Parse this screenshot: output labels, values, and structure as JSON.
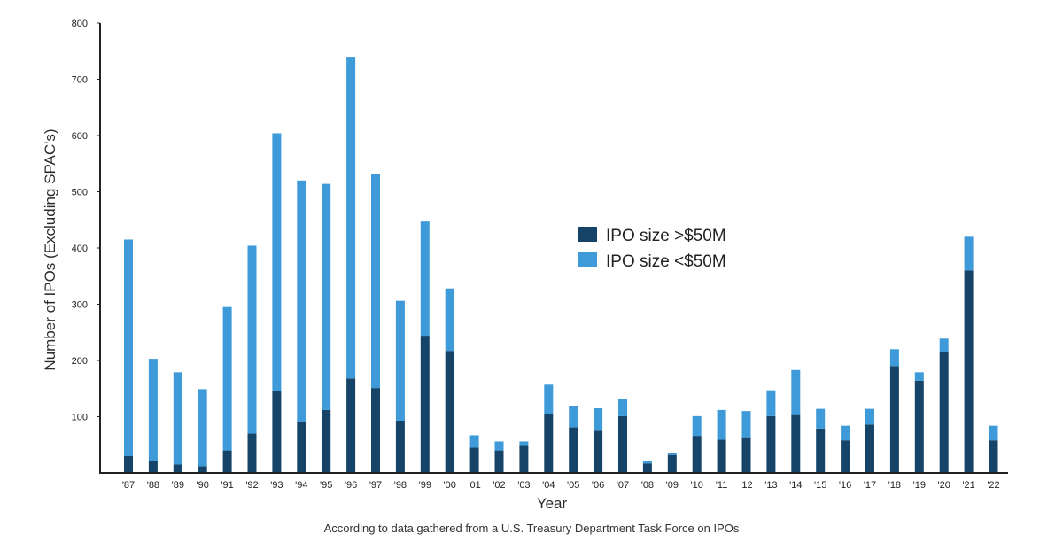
{
  "chart_data": {
    "type": "bar",
    "stacked": true,
    "xlabel": "Year",
    "ylabel": "Number of IPOs (Excluding SPAC's)",
    "caption": "According to data gathered from a U.S. Treasury Department Task Force on IPOs",
    "ylim": [
      0,
      800
    ],
    "yticks": [
      100,
      200,
      300,
      400,
      500,
      600,
      700,
      800
    ],
    "legend_position": "center-right",
    "categories": [
      "'87",
      "'88",
      "'89",
      "'90",
      "'91",
      "'92",
      "'93",
      "'94",
      "'95",
      "'96",
      "'97",
      "'98",
      "'99",
      "'00",
      "'01",
      "'02",
      "'03",
      "'04",
      "'05",
      "'06",
      "'07",
      "'08",
      "'09",
      "'10",
      "'11",
      "'12",
      "'13",
      "'14",
      "'15",
      "'16",
      "'17",
      "'18",
      "'19",
      "'20",
      "'21",
      "'22"
    ],
    "series": [
      {
        "name": "IPO size >$50M",
        "color": "#154468",
        "values": [
          30,
          22,
          15,
          12,
          40,
          70,
          145,
          90,
          112,
          168,
          151,
          93,
          244,
          217,
          45,
          40,
          48,
          105,
          81,
          75,
          101,
          17,
          32,
          66,
          59,
          62,
          101,
          103,
          79,
          58,
          86,
          190,
          164,
          215,
          360,
          58
        ]
      },
      {
        "name": "IPO size <$50M",
        "color": "#3e9ad9",
        "values": [
          385,
          181,
          164,
          137,
          255,
          334,
          459,
          430,
          402,
          572,
          380,
          213,
          203,
          111,
          22,
          16,
          8,
          52,
          38,
          40,
          31,
          5,
          3,
          35,
          53,
          48,
          46,
          80,
          35,
          26,
          28,
          30,
          15,
          24,
          60,
          26
        ]
      }
    ]
  }
}
